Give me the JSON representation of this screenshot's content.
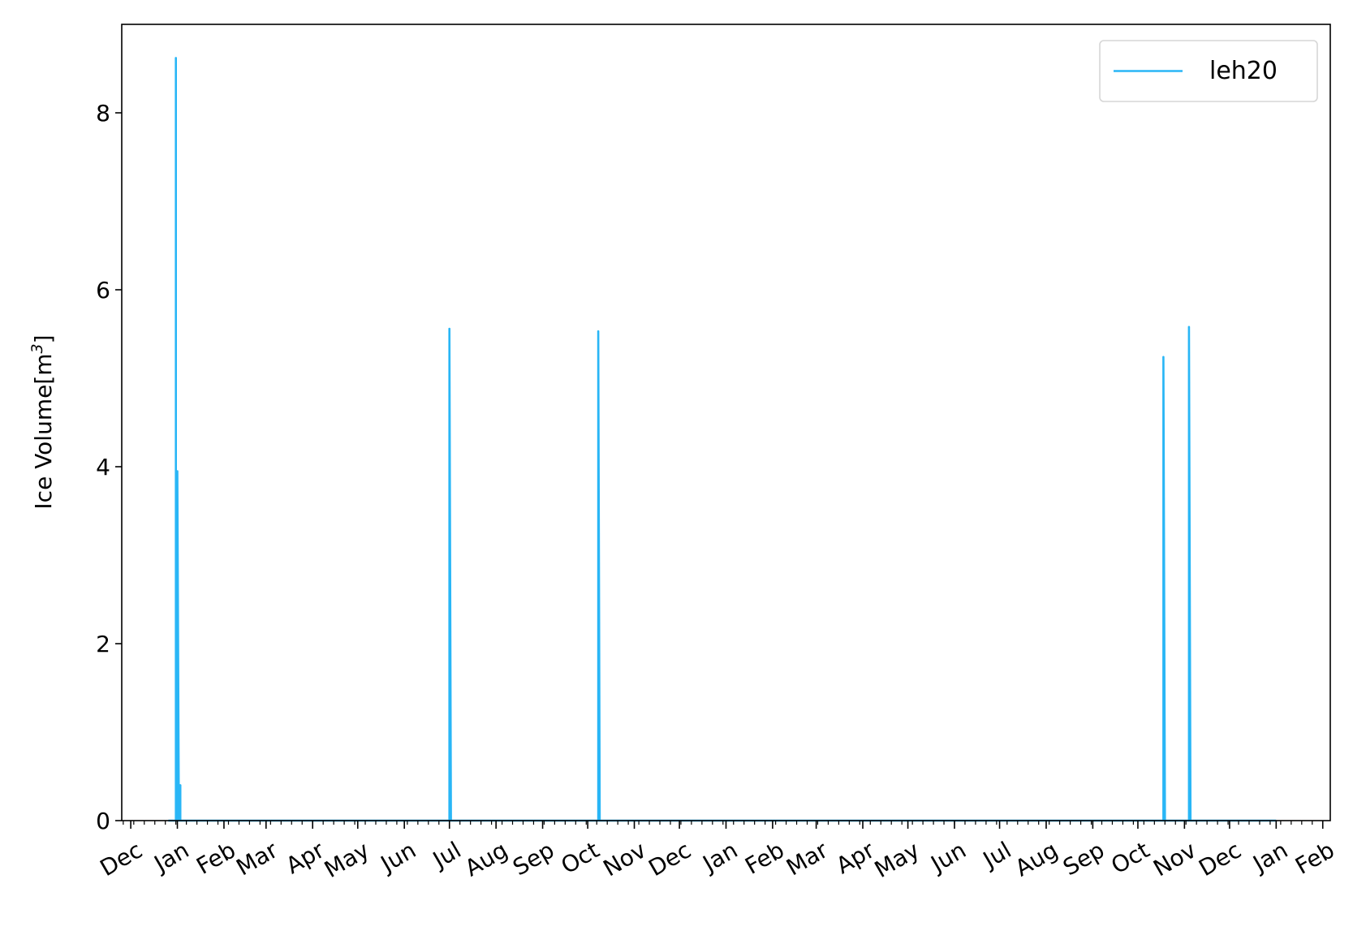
{
  "chart_data": {
    "type": "line",
    "title": "",
    "xlabel": "",
    "ylabel": "Ice Volume[m",
    "ylabel_superscript": "3",
    "ylabel_suffix": "]",
    "ylim": [
      0,
      9
    ],
    "yticks": [
      0,
      2,
      4,
      6,
      8
    ],
    "x_tick_labels": [
      "Dec",
      "Jan",
      "Feb",
      "Mar",
      "Apr",
      "May",
      "Jun",
      "Jul",
      "Aug",
      "Sep",
      "Oct",
      "Nov",
      "Dec",
      "Jan",
      "Feb",
      "Mar",
      "Apr",
      "May",
      "Jun",
      "Jul",
      "Aug",
      "Sep",
      "Oct",
      "Nov",
      "Dec",
      "Jan",
      "Feb"
    ],
    "x_tick_dates": [
      "2018-12-01",
      "2019-01-01",
      "2019-02-01",
      "2019-03-01",
      "2019-04-01",
      "2019-05-01",
      "2019-06-01",
      "2019-07-01",
      "2019-08-01",
      "2019-09-01",
      "2019-10-01",
      "2019-11-01",
      "2019-12-01",
      "2020-01-01",
      "2020-02-01",
      "2020-03-01",
      "2020-04-01",
      "2020-05-01",
      "2020-06-01",
      "2020-07-01",
      "2020-08-01",
      "2020-09-01",
      "2020-10-01",
      "2020-11-01",
      "2020-12-01",
      "2021-01-01",
      "2021-02-01"
    ],
    "xlim": [
      "2018-11-25",
      "2021-02-06"
    ],
    "grid": false,
    "legend": {
      "placement": "top-right"
    },
    "series": [
      {
        "name": "leh20",
        "color": "#29b6f6",
        "x": [
          "2018-12-26",
          "2018-12-31",
          "2018-12-31",
          "2018-12-31",
          "2019-01-01",
          "2019-01-01",
          "2019-01-02",
          "2019-01-02",
          "2019-01-03",
          "2019-01-03",
          "2019-01-04",
          "2019-01-04",
          "2019-07-01",
          "2019-07-01",
          "2019-07-02",
          "2019-10-08",
          "2019-10-08",
          "2019-10-09",
          "2020-10-18",
          "2020-10-18",
          "2020-10-19",
          "2020-11-04",
          "2020-11-04",
          "2020-11-05",
          "2021-01-01"
        ],
        "y": [
          0,
          0,
          8.62,
          0,
          0,
          3.95,
          0,
          0.4,
          0.4,
          0,
          0,
          0,
          0,
          5.56,
          0,
          0,
          5.53,
          0,
          0,
          5.24,
          0,
          0,
          5.58,
          0,
          0
        ]
      }
    ]
  }
}
